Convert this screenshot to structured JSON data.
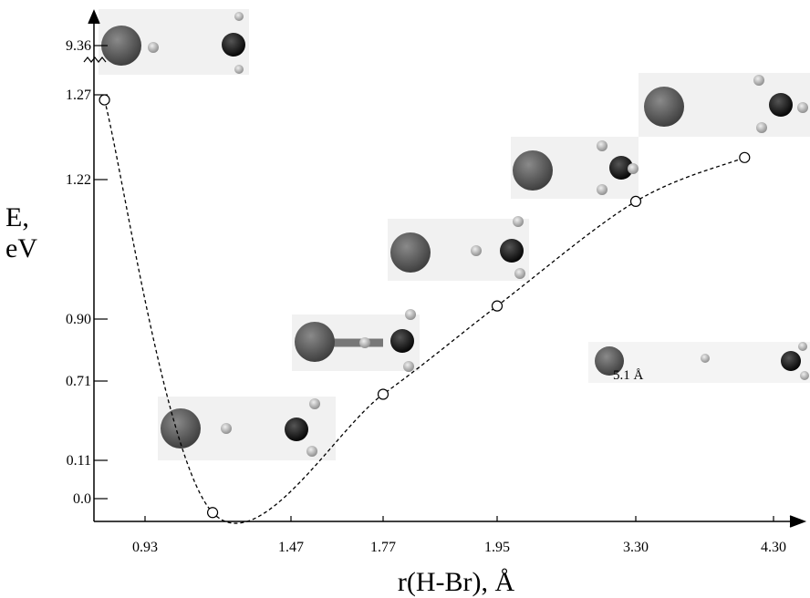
{
  "chart_data": {
    "type": "line",
    "xlabel": "r(H-Br), Å",
    "ylabel": [
      "E,",
      "eV"
    ],
    "xticks": [
      0.93,
      1.47,
      1.77,
      1.95,
      {
        "value": 3.3,
        "label": "3.30"
      },
      {
        "value": 4.3,
        "label": "4.30"
      }
    ],
    "yticks": [
      {
        "value": 0,
        "label": "0.0"
      },
      0.11,
      0.71,
      {
        "value": 0.9,
        "label": "0.90"
      },
      1.22,
      1.27,
      9.36
    ],
    "x": [
      0.78,
      1.18,
      1.77,
      1.95,
      3.3,
      4.09
    ],
    "series": [
      {
        "color": "#000000",
        "values": [
          1.267,
          -0.04,
          0.61,
          0.93,
          1.17,
          1.233
        ]
      }
    ],
    "annotations": [
      "5.1 Å"
    ],
    "axis_break": true
  }
}
